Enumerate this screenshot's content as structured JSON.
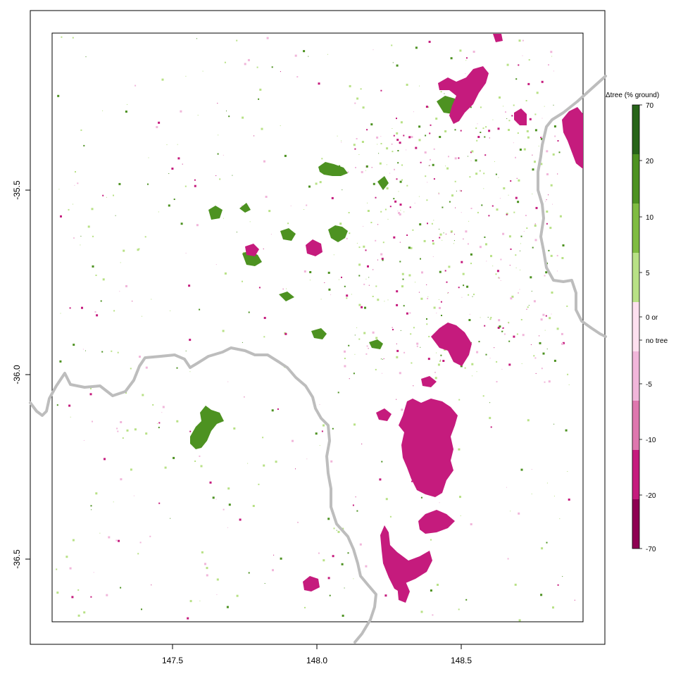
{
  "map": {
    "x_ticks": [
      "147.5",
      "148.0",
      "148.5"
    ],
    "y_ticks": [
      "-35.5",
      "-36.0",
      "-36.5"
    ],
    "x_range": [
      147.0,
      149.0
    ],
    "y_range": [
      -36.75,
      -35.0
    ],
    "colors": {
      "border_line": "#bdbdbd",
      "gain_strong": "#4d9221",
      "gain_light": "#b8e186",
      "loss_strong": "#c51b7d",
      "loss_light": "#f1b6da"
    }
  },
  "legend": {
    "title": "Δtree (% ground)",
    "labels": [
      "70",
      "20",
      "10",
      "5",
      "0 or",
      "no tree",
      "-5",
      "-10",
      "-20",
      "-70"
    ],
    "colors": [
      "#276419",
      "#4d9221",
      "#7fbc41",
      "#b8e186",
      "#e6f5d0",
      "#fde0ef",
      "#f1b6da",
      "#de77ae",
      "#c51b7d",
      "#8e0152"
    ]
  },
  "patches": {
    "gain": [
      {
        "name": "patch-gain-1",
        "lon": 148.04,
        "lat": -35.44
      },
      {
        "name": "patch-gain-2",
        "lon": 147.62,
        "lat": -36.16
      },
      {
        "name": "patch-gain-3",
        "lon": 147.95,
        "lat": -35.62
      },
      {
        "name": "patch-gain-4",
        "lon": 147.75,
        "lat": -35.7
      },
      {
        "name": "patch-gain-5",
        "lon": 148.2,
        "lat": -35.92
      },
      {
        "name": "patch-gain-6",
        "lon": 148.5,
        "lat": -35.24
      }
    ],
    "loss": [
      {
        "name": "patch-loss-1",
        "lon": 148.43,
        "lat": -36.2
      },
      {
        "name": "patch-loss-2",
        "lon": 148.5,
        "lat": -35.18
      },
      {
        "name": "patch-loss-3",
        "lon": 148.42,
        "lat": -36.52
      },
      {
        "name": "patch-loss-4",
        "lon": 148.94,
        "lat": -35.3
      },
      {
        "name": "patch-loss-5",
        "lon": 148.47,
        "lat": -35.9
      }
    ]
  }
}
